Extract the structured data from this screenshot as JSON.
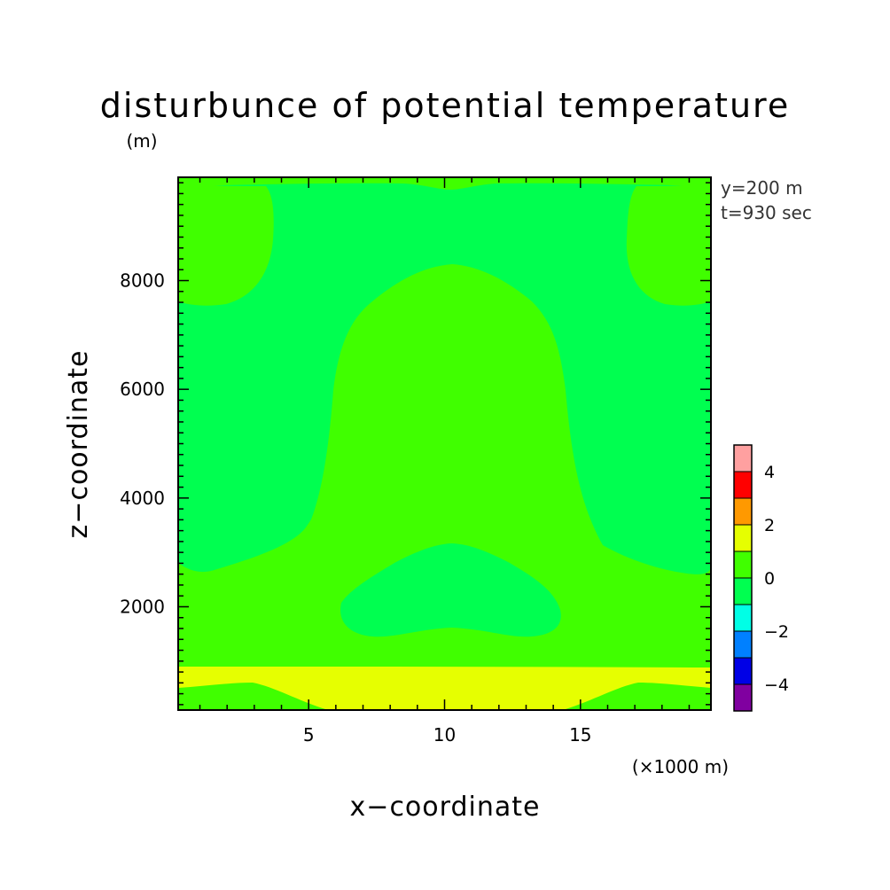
{
  "chart_data": {
    "type": "heatmap",
    "title": "disturbunce of potential temperature",
    "z_unit": "(m)",
    "x_unit": "(×1000 m)",
    "xlabel": "x−coordinate",
    "ylabel": "z−coordinate",
    "xlim": [
      0.2,
      19.8
    ],
    "ylim": [
      100,
      9900
    ],
    "x_ticks": [
      5,
      10,
      15
    ],
    "y_ticks": [
      2000,
      4000,
      6000,
      8000
    ],
    "annotations": [
      "y=200 m",
      "t=930 sec"
    ],
    "colorbar": {
      "levels": [
        -5,
        -4,
        -3,
        -2,
        -1,
        0,
        1,
        2,
        3,
        4,
        5
      ],
      "colors": [
        "#8000a0",
        "#0000e6",
        "#0080ff",
        "#00ffe6",
        "#00ff50",
        "#40ff00",
        "#e6ff00",
        "#ff9900",
        "#ff0000",
        "#ffa0a0"
      ],
      "tick_labels": [
        "−4",
        "−2",
        "0",
        "2",
        "4"
      ],
      "tick_values": [
        -4,
        -2,
        0,
        2,
        4
      ]
    },
    "regions": [
      {
        "value_range": [
          -1,
          0
        ],
        "color": "#00ff50",
        "description": "background"
      },
      {
        "value_range": [
          0,
          1
        ],
        "color": "#40ff00",
        "description": "central plume x 6–14.5, z 1500–8300"
      },
      {
        "value_range": [
          0,
          1
        ],
        "color": "#40ff00",
        "description": "upper-left and upper-right corners above z 7500"
      },
      {
        "value_range": [
          0,
          1
        ],
        "color": "#40ff00",
        "description": "low layer z 900–2700"
      },
      {
        "value_range": [
          -1,
          0
        ],
        "color": "#00ff50",
        "description": "lobe x 6–14, z 1400–3100"
      },
      {
        "value_range": [
          1,
          2
        ],
        "color": "#e6ff00",
        "description": "surface layer z 100–900"
      }
    ]
  }
}
